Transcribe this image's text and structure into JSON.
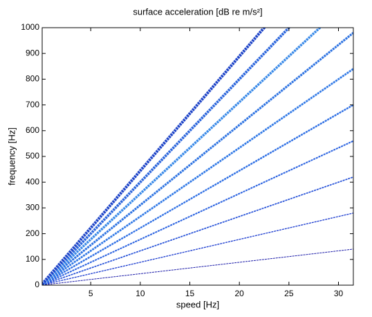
{
  "chart_data": {
    "type": "line",
    "title": "surface acceleration [dB re m/s²]",
    "x_label": "speed [Hz]",
    "y_label": "frequency [Hz]",
    "x": [
      0.1,
      31.5
    ],
    "series": [
      {
        "color": "#1a1aa8",
        "values": [
          0.4,
          140
        ]
      },
      {
        "color": "#1f3fd0",
        "values": [
          0.9,
          280
        ]
      },
      {
        "color": "#2450d8",
        "values": [
          1.3,
          420
        ]
      },
      {
        "color": "#2a62e0",
        "values": [
          1.8,
          560
        ]
      },
      {
        "color": "#2e6fe4",
        "values": [
          2.2,
          700
        ]
      },
      {
        "color": "#3179e6",
        "values": [
          2.7,
          840
        ]
      },
      {
        "color": "#2f74e2",
        "values": [
          3.1,
          980
        ]
      },
      {
        "color": "#3a8ae8",
        "values": [
          3.6,
          1120
        ]
      },
      {
        "color": "#2c66dc",
        "values": [
          4.0,
          1260
        ]
      },
      {
        "color": "#1f45c8",
        "values": [
          4.4,
          1400
        ]
      }
    ],
    "xlim": [
      0.1,
      31.5
    ],
    "ylim": [
      0,
      1000
    ],
    "xticks": [
      5,
      10,
      15,
      20,
      25,
      30
    ],
    "yticks": [
      0,
      100,
      200,
      300,
      400,
      500,
      600,
      700,
      800,
      900,
      1000
    ],
    "grid": false
  }
}
